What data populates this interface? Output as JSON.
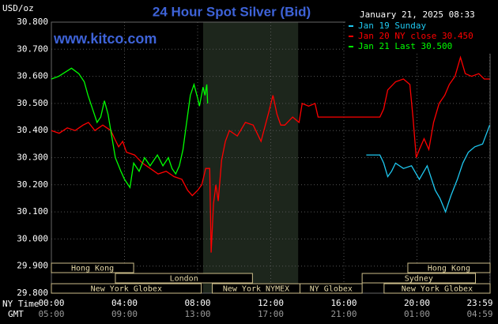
{
  "chart_data": {
    "type": "line",
    "title": "24 Hour Spot Silver (Bid)",
    "y_label": "USD/oz",
    "timestamp": "January 21, 2025 08:33",
    "watermark": "www.kitco.com",
    "x_axis_names": [
      "NY Time",
      "GMT"
    ],
    "xlim": [
      0,
      24
    ],
    "xticks": [
      {
        "value": 0,
        "label": "00:00"
      },
      {
        "value": 4,
        "label": "04:00"
      },
      {
        "value": 8,
        "label": "08:00"
      },
      {
        "value": 12,
        "label": "12:00"
      },
      {
        "value": 16,
        "label": "16:00"
      },
      {
        "value": 20,
        "label": "20:00"
      },
      {
        "value": 23.98,
        "label": "23:59"
      }
    ],
    "gmt_labels": [
      "05:00",
      "09:00",
      "13:00",
      "17:00",
      "21:00",
      "01:00",
      "04:59"
    ],
    "ylim": [
      29.8,
      30.8
    ],
    "yticks": [
      {
        "value": 29.8,
        "label": "29.800"
      },
      {
        "value": 29.9,
        "label": "29.900"
      },
      {
        "value": 30.0,
        "label": "30.000"
      },
      {
        "value": 30.1,
        "label": "30.100"
      },
      {
        "value": 30.2,
        "label": "30.200"
      },
      {
        "value": 30.3,
        "label": "30.300"
      },
      {
        "value": 30.4,
        "label": "30.400"
      },
      {
        "value": 30.5,
        "label": "30.500"
      },
      {
        "value": 30.6,
        "label": "30.600"
      },
      {
        "value": 30.7,
        "label": "30.700"
      },
      {
        "value": 30.8,
        "label": "30.800"
      }
    ],
    "grid": true,
    "legend": "upper right",
    "shade": [
      8.3,
      13.5
    ],
    "sessions": [
      [
        {
          "label": "Hong Kong",
          "start": 0,
          "end": 4.5
        },
        {
          "label": "Hong Kong",
          "start": 19.5,
          "end": 24
        }
      ],
      [
        {
          "label": "London",
          "start": 3.5,
          "end": 11
        },
        {
          "label": "Sydney",
          "start": 17,
          "end": 23.2
        }
      ],
      [
        {
          "label": "New York Globex",
          "start": 0,
          "end": 8.2
        },
        {
          "label": "New York NYMEX",
          "start": 8.8,
          "end": 13.6
        },
        {
          "label": "NY Globex",
          "start": 13.6,
          "end": 17
        },
        {
          "label": "New York Globex",
          "start": 18.2,
          "end": 24
        }
      ]
    ],
    "series": [
      {
        "name": "Jan 19 Sunday",
        "color": "#1ec8f0",
        "x": [
          17.23,
          17.97,
          18.18,
          18.4,
          18.61,
          18.83,
          19.26,
          19.7,
          20.13,
          20.56,
          21.0,
          21.26,
          21.56,
          21.86,
          22.21,
          22.51,
          22.81,
          23.16,
          23.59,
          23.98
        ],
        "values": [
          30.31,
          30.31,
          30.28,
          30.23,
          30.25,
          30.28,
          30.26,
          30.27,
          30.22,
          30.27,
          30.18,
          30.15,
          30.1,
          30.16,
          30.22,
          30.28,
          30.32,
          30.34,
          30.35,
          30.42
        ]
      },
      {
        "name": "Jan 20 NY close 30.450",
        "color": "#ff0000",
        "x": [
          0,
          0.43,
          0.87,
          1.3,
          1.73,
          2.03,
          2.38,
          2.81,
          3.25,
          3.46,
          3.68,
          3.9,
          4.11,
          4.55,
          4.98,
          5.41,
          5.84,
          6.28,
          6.71,
          7.14,
          7.45,
          7.71,
          8.01,
          8.23,
          8.44,
          8.66,
          8.74,
          8.87,
          9.0,
          9.13,
          9.31,
          9.52,
          9.74,
          10.17,
          10.61,
          11.04,
          11.47,
          11.9,
          12.12,
          12.34,
          12.55,
          12.77,
          13.2,
          13.55,
          13.72,
          14.07,
          14.42,
          14.59,
          17.97,
          18.18,
          18.4,
          18.83,
          19.26,
          19.61,
          19.78,
          19.96,
          20.13,
          20.39,
          20.65,
          20.91,
          21.21,
          21.52,
          21.77,
          22.08,
          22.38,
          22.64,
          22.99,
          23.38,
          23.68,
          23.98
        ],
        "values": [
          30.4,
          30.39,
          30.41,
          30.4,
          30.42,
          30.43,
          30.4,
          30.42,
          30.4,
          30.37,
          30.34,
          30.36,
          30.32,
          30.31,
          30.28,
          30.26,
          30.24,
          30.25,
          30.23,
          30.22,
          30.18,
          30.16,
          30.18,
          30.2,
          30.26,
          30.26,
          29.95,
          30.13,
          30.2,
          30.14,
          30.29,
          30.36,
          30.4,
          30.38,
          30.43,
          30.42,
          30.36,
          30.47,
          30.53,
          30.46,
          30.42,
          30.42,
          30.45,
          30.43,
          30.5,
          30.49,
          30.5,
          30.45,
          30.45,
          30.48,
          30.55,
          30.58,
          30.59,
          30.57,
          30.45,
          30.3,
          30.33,
          30.37,
          30.33,
          30.43,
          30.5,
          30.53,
          30.57,
          30.6,
          30.67,
          30.61,
          30.6,
          30.61,
          30.59,
          30.59
        ]
      },
      {
        "name": "Jan 21 Last 30.500",
        "color": "#00ff00",
        "x": [
          0,
          0.4,
          1.1,
          1.5,
          1.8,
          2.0,
          2.2,
          2.5,
          2.7,
          2.9,
          3.1,
          3.3,
          3.5,
          3.8,
          4.0,
          4.3,
          4.5,
          4.8,
          5.1,
          5.4,
          5.8,
          6.1,
          6.4,
          6.6,
          6.8,
          7.0,
          7.2,
          7.4,
          7.6,
          7.8,
          8.0,
          8.1,
          8.3,
          8.4,
          8.5,
          8.55
        ],
        "values": [
          30.59,
          30.6,
          30.63,
          30.61,
          30.58,
          30.53,
          30.49,
          30.43,
          30.45,
          30.51,
          30.46,
          30.38,
          30.3,
          30.25,
          30.22,
          30.19,
          30.28,
          30.25,
          30.3,
          30.27,
          30.31,
          30.27,
          30.3,
          30.26,
          30.24,
          30.27,
          30.33,
          30.43,
          30.53,
          30.57,
          30.52,
          30.49,
          30.56,
          30.53,
          30.57,
          30.5
        ]
      }
    ]
  }
}
